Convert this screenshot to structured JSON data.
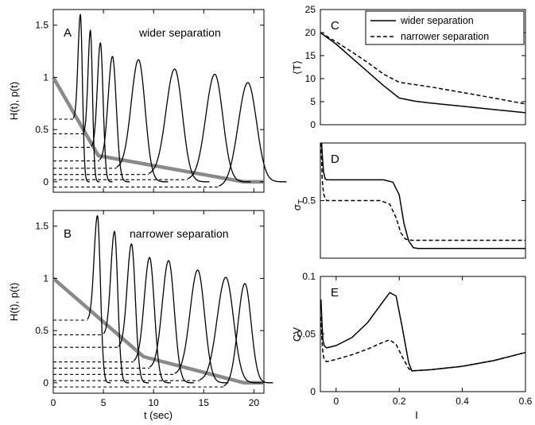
{
  "chart_data": [
    {
      "panel": "A",
      "type": "line",
      "annotation": "wider separation",
      "ylabel": "H(t), p(t)",
      "xlim": [
        0,
        21
      ],
      "ylim": [
        -0.1,
        1.65
      ],
      "xticks": [
        0,
        5,
        10,
        15,
        20
      ],
      "yticks": [
        0,
        0.5,
        1,
        1.5
      ],
      "threshold_curve": {
        "x": [
          0,
          4.5,
          19,
          21
        ],
        "y": [
          1.0,
          0.25,
          0.0,
          0.0
        ]
      },
      "dashed_levels": [
        0.6,
        0.46,
        0.33,
        0.2,
        0.13,
        0.07,
        0.02,
        -0.05
      ],
      "peaks": [
        {
          "t": 2.7,
          "height": 1.6,
          "start": 2.0,
          "level": 0.6
        },
        {
          "t": 3.7,
          "height": 1.45,
          "start": 3.0,
          "level": 0.46
        },
        {
          "t": 4.7,
          "height": 1.33,
          "start": 3.8,
          "level": 0.33
        },
        {
          "t": 5.9,
          "height": 1.2,
          "start": 4.6,
          "level": 0.2
        },
        {
          "t": 8.5,
          "height": 1.17,
          "start": 6.3,
          "level": 0.13
        },
        {
          "t": 12.1,
          "height": 1.08,
          "start": 9.5,
          "level": 0.07
        },
        {
          "t": 16.1,
          "height": 1.03,
          "start": 13.4,
          "level": 0.02
        },
        {
          "t": 19.4,
          "height": 0.95,
          "start": 16.5,
          "level": -0.05
        }
      ]
    },
    {
      "panel": "B",
      "type": "line",
      "annotation": "narrower separation",
      "ylabel": "H(t), p(t)",
      "xlabel": "t (sec)",
      "xlim": [
        0,
        21
      ],
      "ylim": [
        -0.1,
        1.65
      ],
      "xticks": [
        0,
        5,
        10,
        15,
        20
      ],
      "yticks": [
        0,
        0.5,
        1,
        1.5
      ],
      "threshold_curve": {
        "x": [
          0,
          9,
          19,
          21
        ],
        "y": [
          1.0,
          0.25,
          0.0,
          0.0
        ]
      },
      "dashed_levels": [
        0.6,
        0.46,
        0.34,
        0.2,
        0.14,
        0.08,
        0.02,
        -0.04
      ],
      "peaks": [
        {
          "t": 4.4,
          "height": 1.6,
          "start": 3.4,
          "level": 0.6
        },
        {
          "t": 6.1,
          "height": 1.45,
          "start": 5.0,
          "level": 0.46
        },
        {
          "t": 7.8,
          "height": 1.33,
          "start": 6.5,
          "level": 0.34
        },
        {
          "t": 9.6,
          "height": 1.2,
          "start": 8.0,
          "level": 0.2
        },
        {
          "t": 11.5,
          "height": 1.17,
          "start": 9.6,
          "level": 0.14
        },
        {
          "t": 14.4,
          "height": 1.08,
          "start": 12.1,
          "level": 0.08
        },
        {
          "t": 17.2,
          "height": 1.01,
          "start": 14.6,
          "level": 0.02
        },
        {
          "t": 19.1,
          "height": 0.95,
          "start": 17.0,
          "level": -0.04
        }
      ]
    },
    {
      "panel": "C",
      "type": "line",
      "ylabel": "⟨T⟩",
      "xlim": [
        -0.05,
        0.6
      ],
      "ylim": [
        0,
        25
      ],
      "yticks": [
        0,
        5,
        10,
        15,
        20,
        25
      ],
      "legend": "top-right",
      "series": [
        {
          "name": "wider separation",
          "style": "solid",
          "x": [
            -0.05,
            0.0,
            0.05,
            0.1,
            0.15,
            0.2,
            0.25,
            0.3,
            0.4,
            0.5,
            0.6
          ],
          "y": [
            20,
            17.5,
            14.5,
            11.5,
            8.5,
            5.8,
            5.1,
            4.7,
            4.0,
            3.3,
            2.6
          ]
        },
        {
          "name": "narrower separation",
          "style": "dashed",
          "x": [
            -0.05,
            0.0,
            0.05,
            0.1,
            0.15,
            0.2,
            0.25,
            0.3,
            0.4,
            0.5,
            0.6
          ],
          "y": [
            20,
            18,
            15.8,
            13.5,
            11.0,
            9.2,
            8.7,
            8.2,
            7.0,
            5.8,
            4.5
          ]
        }
      ]
    },
    {
      "panel": "D",
      "type": "line",
      "ylabel": "σT",
      "xlim": [
        -0.05,
        0.6
      ],
      "ylim": [
        0,
        1
      ],
      "yticks": [
        0.5
      ],
      "series": [
        {
          "name": "wider separation",
          "style": "solid",
          "x": [
            -0.046,
            -0.044,
            -0.04,
            -0.035,
            -0.03,
            0.0,
            0.1,
            0.15,
            0.18,
            0.2,
            0.215,
            0.23,
            0.245,
            0.26,
            0.3,
            0.6
          ],
          "y": [
            1.0,
            0.9,
            0.75,
            0.69,
            0.68,
            0.68,
            0.68,
            0.68,
            0.66,
            0.55,
            0.3,
            0.15,
            0.09,
            0.085,
            0.085,
            0.085
          ]
        },
        {
          "name": "narrower separation",
          "style": "dashed",
          "x": [
            -0.048,
            -0.046,
            -0.044,
            -0.04,
            -0.035,
            -0.03,
            -0.02,
            0.0,
            0.1,
            0.14,
            0.17,
            0.19,
            0.205,
            0.22,
            0.24,
            0.3,
            0.6
          ],
          "y": [
            1.0,
            0.85,
            0.68,
            0.56,
            0.52,
            0.5,
            0.5,
            0.5,
            0.5,
            0.5,
            0.47,
            0.35,
            0.22,
            0.165,
            0.155,
            0.155,
            0.155
          ]
        }
      ]
    },
    {
      "panel": "E",
      "type": "line",
      "ylabel": "CV",
      "xlabel": "I",
      "xlim": [
        -0.05,
        0.6
      ],
      "ylim": [
        0,
        0.1
      ],
      "xticks": [
        0,
        0.2,
        0.4,
        0.6
      ],
      "yticks": [
        0,
        0.05,
        0.1
      ],
      "series": [
        {
          "name": "wider separation",
          "style": "solid",
          "x": [
            -0.048,
            -0.045,
            -0.042,
            -0.038,
            -0.03,
            0.0,
            0.05,
            0.1,
            0.14,
            0.17,
            0.19,
            0.21,
            0.23,
            0.24,
            0.3,
            0.4,
            0.5,
            0.6
          ],
          "y": [
            0.08,
            0.06,
            0.045,
            0.04,
            0.038,
            0.04,
            0.047,
            0.06,
            0.075,
            0.086,
            0.083,
            0.055,
            0.025,
            0.018,
            0.019,
            0.022,
            0.027,
            0.034
          ]
        },
        {
          "name": "narrower separation",
          "style": "dashed",
          "x": [
            -0.048,
            -0.045,
            -0.042,
            -0.038,
            -0.03,
            0.0,
            0.05,
            0.1,
            0.15,
            0.17,
            0.19,
            0.21,
            0.23,
            0.24,
            0.3,
            0.4,
            0.5,
            0.6
          ],
          "y": [
            0.065,
            0.045,
            0.033,
            0.028,
            0.026,
            0.028,
            0.032,
            0.037,
            0.043,
            0.045,
            0.041,
            0.03,
            0.02,
            0.018,
            0.019,
            0.022,
            0.027,
            0.034
          ]
        }
      ]
    }
  ]
}
